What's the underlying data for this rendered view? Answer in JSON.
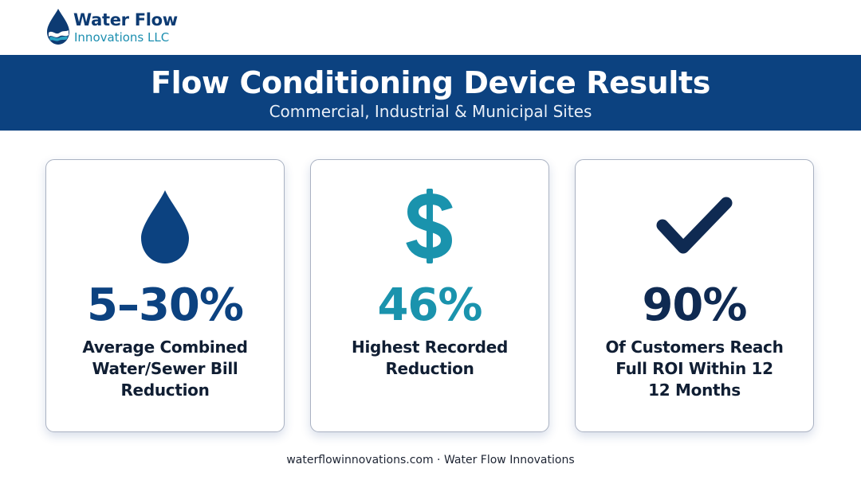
{
  "brand": {
    "name": "Water Flow",
    "sub": "Innovations LLC",
    "logo_icon": "water-drop-waves-icon",
    "colors": {
      "navy": "#0c4280",
      "teal": "#1d8fb0",
      "dark": "#0f2a52"
    }
  },
  "banner": {
    "title": "Flow Conditioning Device Results",
    "subtitle": "Commercial, Industrial & Municipal Sites"
  },
  "cards": [
    {
      "icon": "water-drop-icon",
      "stat": "5–30%",
      "stat_color": "#0c4280",
      "lines": [
        "Average Combined",
        "Water/Sewer Bill",
        "Reduction"
      ]
    },
    {
      "icon": "dollar-sign-icon",
      "stat": "46%",
      "stat_color": "#1a93ad",
      "lines": [
        "Highest Recorded",
        "Reduction"
      ]
    },
    {
      "icon": "checkmark-icon",
      "stat": "90%",
      "stat_color": "#0f2a52",
      "lines": [
        "Of Customers Reach",
        "Full ROI Within 12",
        "12 Months"
      ]
    }
  ],
  "footer": {
    "text": "waterflowinnovations.com · Water Flow Innovations"
  }
}
